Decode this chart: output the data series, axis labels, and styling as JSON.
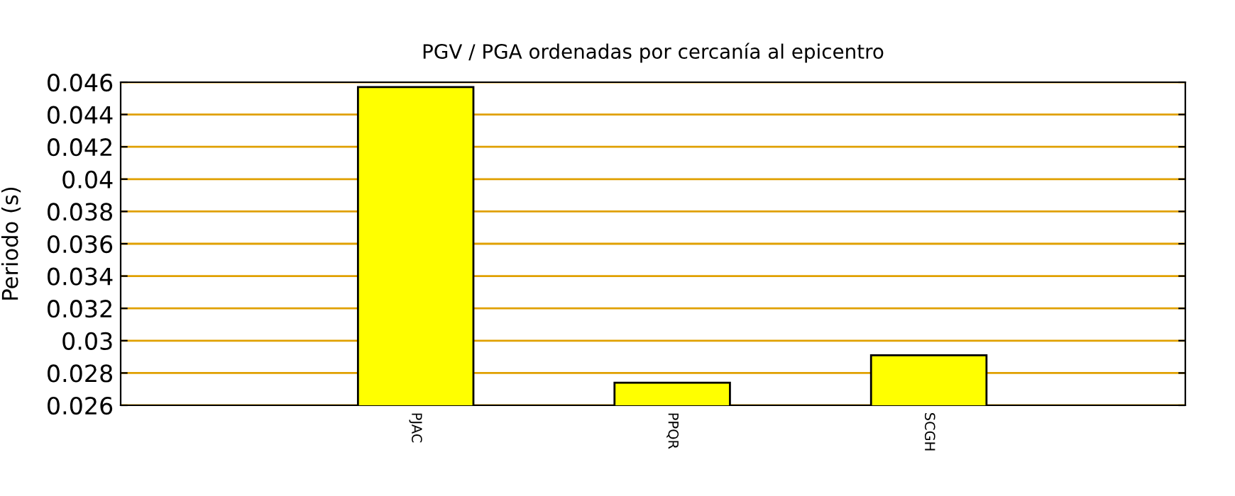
{
  "chart_data": {
    "type": "bar",
    "title": "PGV / PGA ordenadas por cercanía al epicentro",
    "ylabel": "Periodo (s)",
    "categories": [
      "PJAC",
      "PPQR",
      "SCGH"
    ],
    "values": [
      0.0457,
      0.0274,
      0.0291
    ],
    "color": "#ffff00",
    "ylim": [
      0.026,
      0.046
    ],
    "yticks": [
      0.026,
      0.028,
      0.03,
      0.032,
      0.034,
      0.036,
      0.038,
      0.04,
      0.042,
      0.044,
      0.046
    ],
    "grid": "y"
  }
}
